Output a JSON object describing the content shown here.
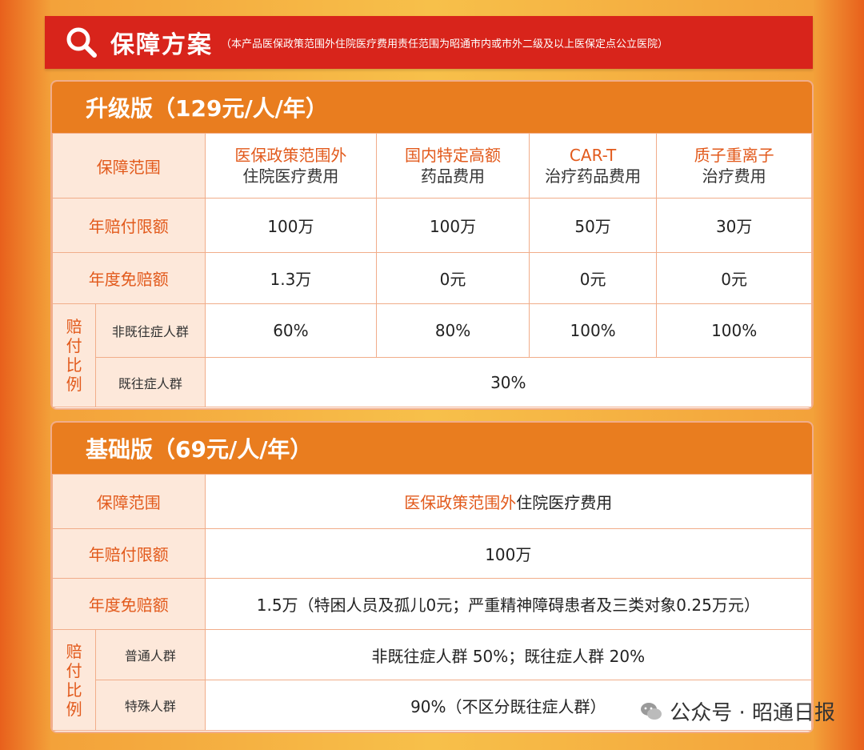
{
  "banner": {
    "title": "保障方案",
    "note": "（本产品医保政策范围外住院医疗费用责任范围为昭通市内或市外二级及以上医保定点公立医院）"
  },
  "upgrade": {
    "title": "升级版（129元/人/年）",
    "row_scope": "保障范围",
    "headers": [
      {
        "line1": "医保政策范围外",
        "line2": "住院医疗费用"
      },
      {
        "line1": "国内特定高额",
        "line2": "药品费用"
      },
      {
        "line1": "CAR-T",
        "line2": "治疗药品费用"
      },
      {
        "line1": "质子重离子",
        "line2": "治疗费用"
      }
    ],
    "row_limit": "年赔付限额",
    "limits": [
      "100万",
      "100万",
      "50万",
      "30万"
    ],
    "row_deductible": "年度免赔额",
    "deductibles": [
      "1.3万",
      "0元",
      "0元",
      "0元"
    ],
    "ratio_label": "赔付比例",
    "row_non_pre": "非既往症人群",
    "non_pre": [
      "60%",
      "80%",
      "100%",
      "100%"
    ],
    "row_pre": "既往症人群",
    "pre": "30%"
  },
  "basic": {
    "title": "基础版（69元/人/年）",
    "row_scope": "保障范围",
    "scope_a": "医保政策范围外",
    "scope_b": "住院医疗费用",
    "row_limit": "年赔付限额",
    "limit": "100万",
    "row_deductible": "年度免赔额",
    "deductible": "1.5万",
    "deductible_note": "（特困人员及孤儿0元；严重精神障碍患者及三类对象0.25万元）",
    "ratio_label": "赔付比例",
    "row_normal": "普通人群",
    "normal": "非既往症人群 50%；既往症人群 20%",
    "row_special": "特殊人群",
    "special": "90%（不区分既往症人群）"
  },
  "watermark": "公众号 · 昭通日报",
  "icons": {
    "banner": "magnifier-icon",
    "watermark": "wechat-logo-icon"
  }
}
